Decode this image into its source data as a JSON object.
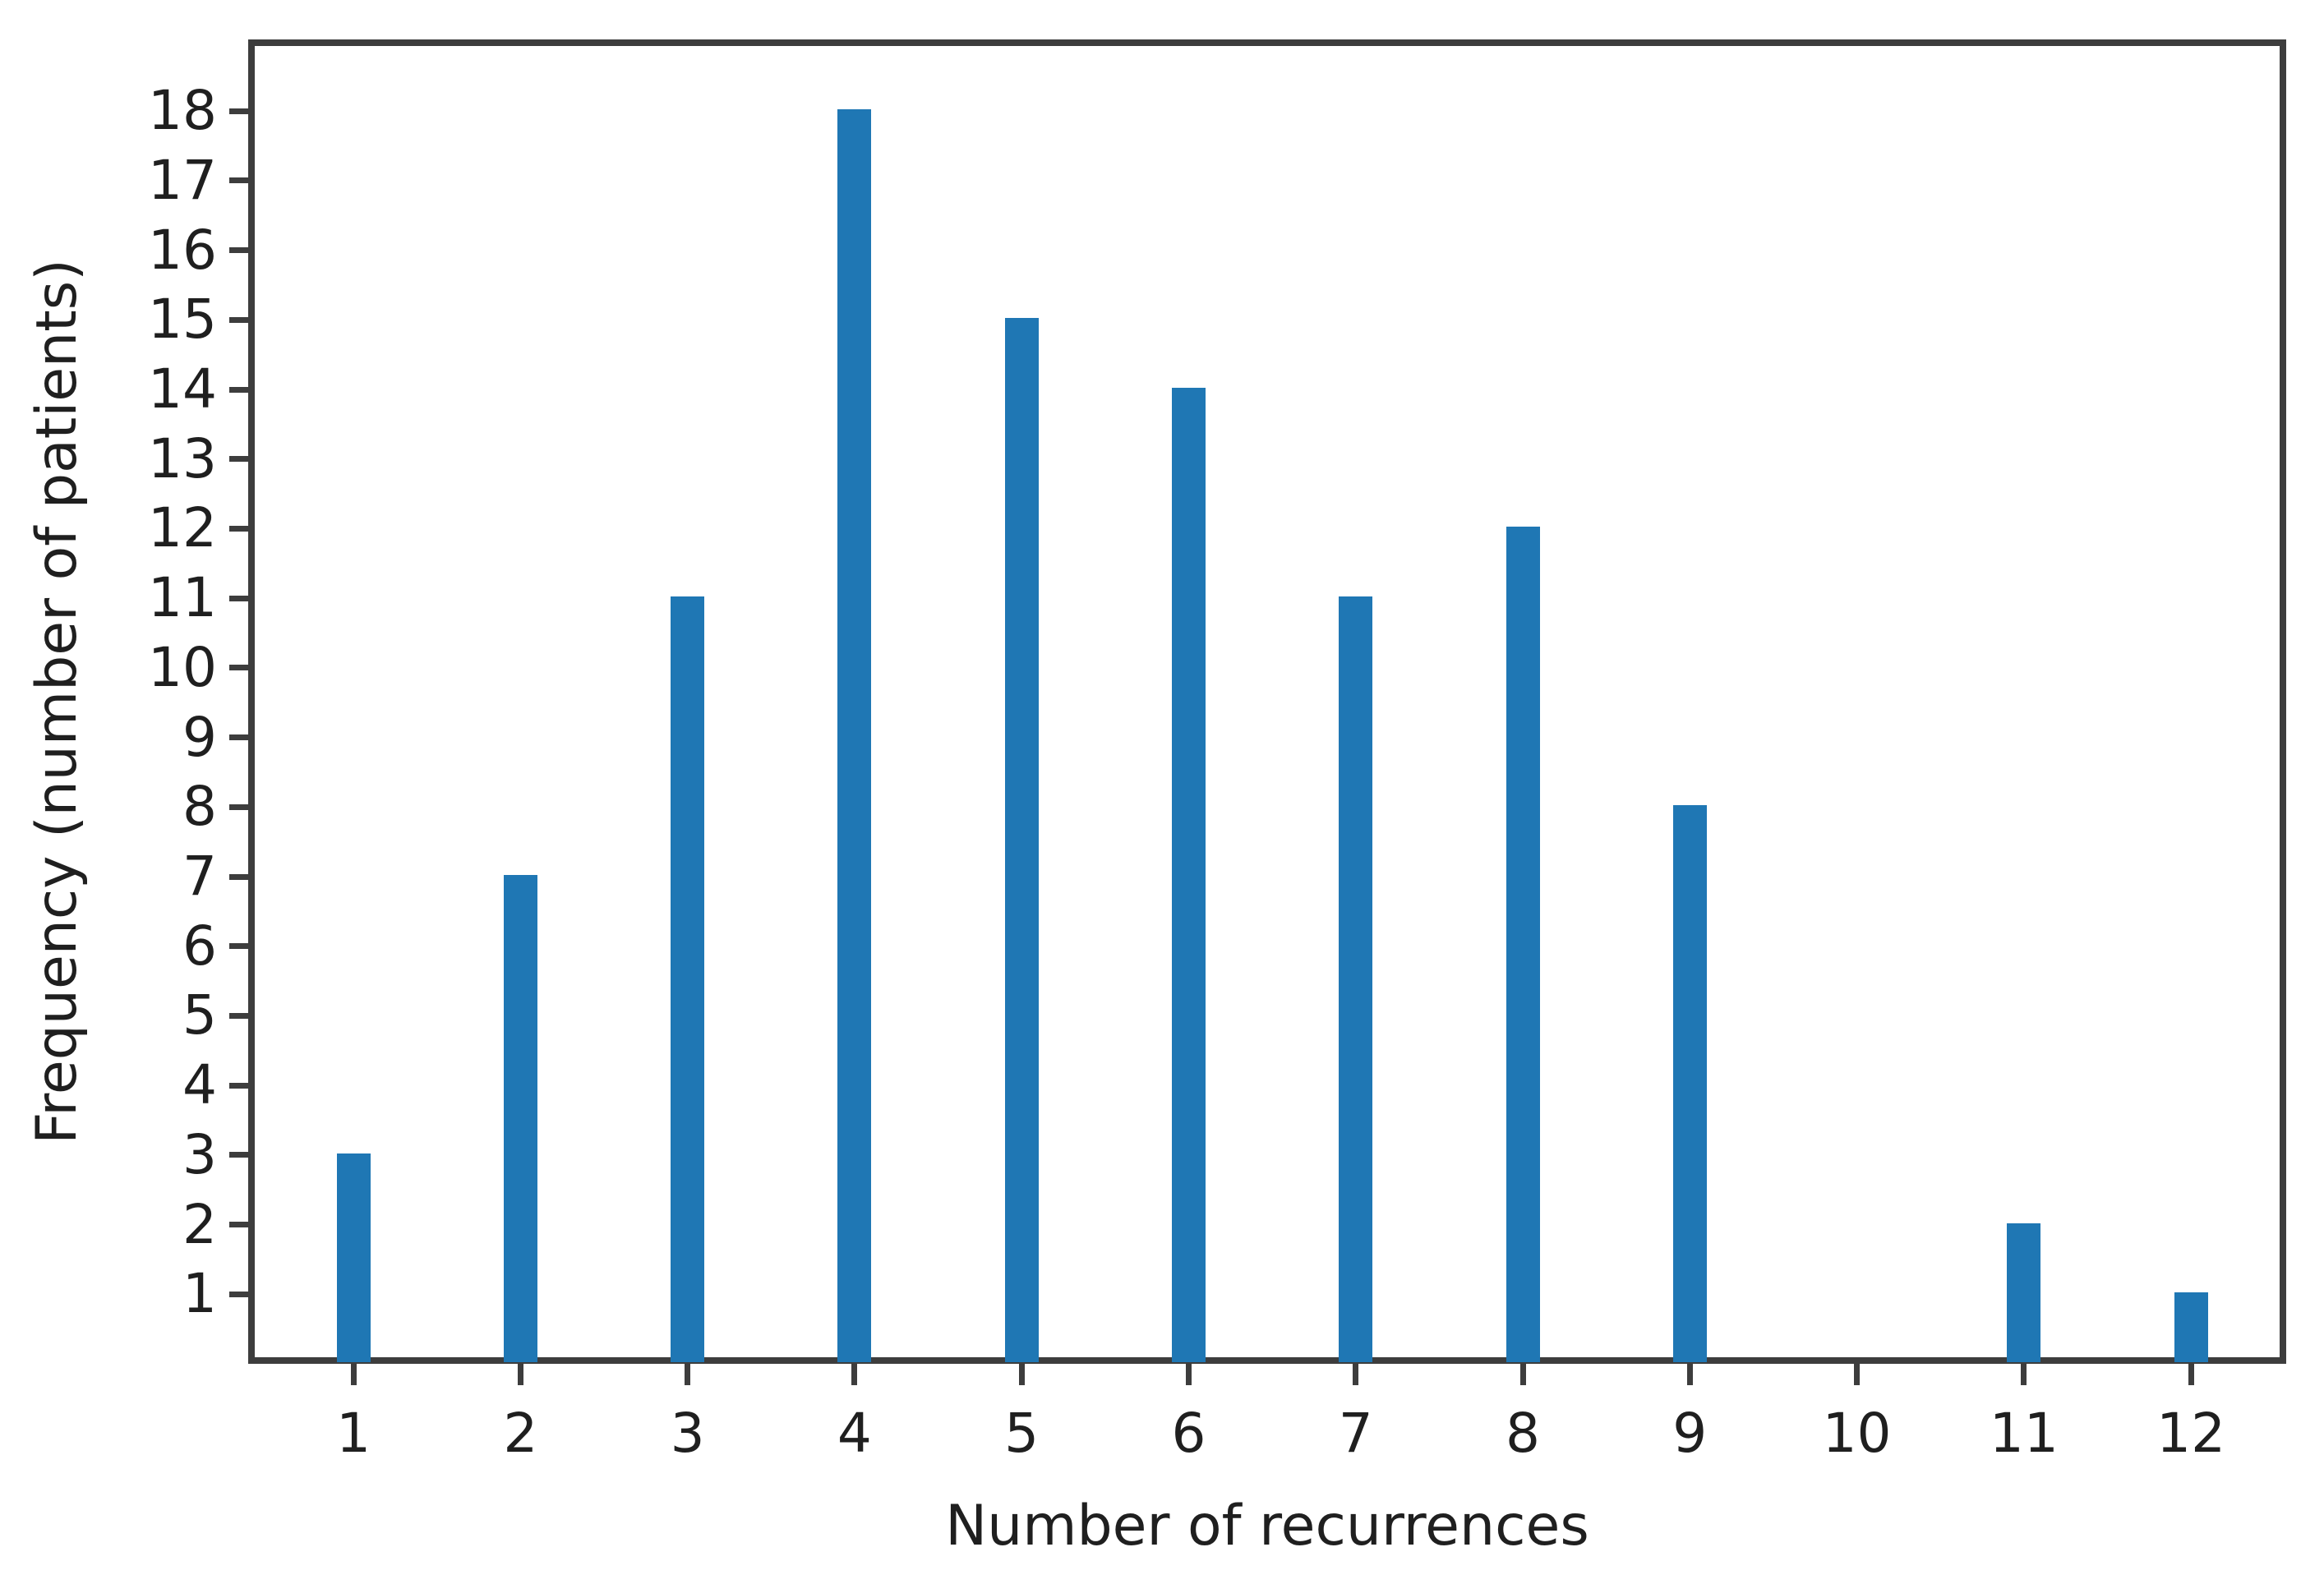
{
  "chart_data": {
    "type": "bar",
    "title": "",
    "xlabel": "Number of recurrences",
    "ylabel": "Frequency (number of patients)",
    "categories": [
      1,
      2,
      3,
      4,
      5,
      6,
      7,
      8,
      9,
      10,
      11,
      12
    ],
    "values": [
      3,
      7,
      11,
      18,
      15,
      14,
      11,
      12,
      8,
      0,
      2,
      1
    ],
    "yticks": [
      1,
      2,
      3,
      4,
      5,
      6,
      7,
      8,
      9,
      10,
      11,
      12,
      13,
      14,
      15,
      16,
      17,
      18
    ],
    "ylim": [
      0,
      19.03
    ],
    "xlim": [
      0.37,
      12.57
    ],
    "grid": false,
    "legend": null,
    "bar_color": "#1f77b4",
    "axis_color": "#3d3d3d",
    "text_color": "#1f1f1f",
    "background_color": "#ffffff",
    "bar_width_fraction": 0.2
  }
}
